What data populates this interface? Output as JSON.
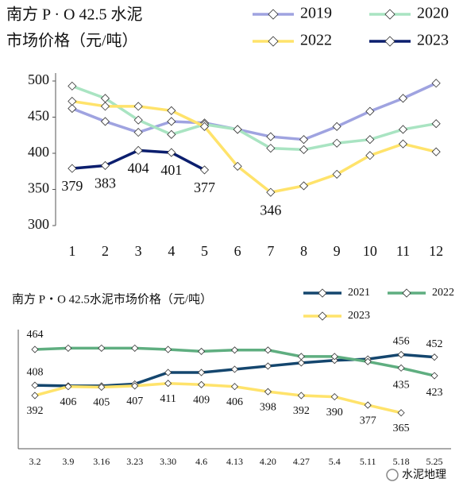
{
  "chart_data": [
    {
      "type": "line",
      "title": [
        "南方 P · O 42.5 水泥",
        "市场价格（元/吨）"
      ],
      "categories": [
        "1",
        "2",
        "3",
        "4",
        "5",
        "6",
        "7",
        "8",
        "9",
        "10",
        "11",
        "12"
      ],
      "ylim": [
        300,
        500
      ],
      "yticks": [
        300,
        350,
        400,
        450,
        500
      ],
      "series": [
        {
          "name": "2019",
          "color": "#9fa3e0",
          "values": [
            462,
            444,
            429,
            444,
            442,
            433,
            423,
            419,
            437,
            458,
            476,
            497
          ]
        },
        {
          "name": "2020",
          "color": "#a9e4c2",
          "values": [
            493,
            476,
            446,
            426,
            440,
            433,
            407,
            405,
            414,
            419,
            433,
            441
          ]
        },
        {
          "name": "2022",
          "color": "#ffe36b",
          "values": [
            472,
            465,
            465,
            459,
            437,
            382,
            346,
            355,
            371,
            397,
            413,
            402
          ],
          "labeled": [
            6
          ],
          "label_color": "#e8822a"
        },
        {
          "name": "2023",
          "color": "#0b1e6e",
          "values": [
            379,
            383,
            404,
            401,
            377,
            null,
            null,
            null,
            null,
            null,
            null,
            null
          ],
          "labeled": [
            0,
            1,
            2,
            3,
            4
          ],
          "label_color": "#111111"
        }
      ]
    },
    {
      "type": "line",
      "title": "南方 P・O 42.5水泥市场价格（元/吨）",
      "categories": [
        "3.2",
        "3.9",
        "3.16",
        "3.23",
        "3.30",
        "4.6",
        "4.13",
        "4.20",
        "4.27",
        "5.4",
        "5.11",
        "5.18",
        "5.25"
      ],
      "ylim": [
        320,
        500
      ],
      "series": [
        {
          "name": "2021",
          "color": "#14466e",
          "values": [
            408,
            407,
            407,
            410,
            428,
            428,
            433,
            438,
            443,
            447,
            449,
            456,
            452
          ],
          "labeled": [
            0,
            11,
            12
          ],
          "label_color": "#111111"
        },
        {
          "name": "2022",
          "color": "#5fae80",
          "values": [
            464,
            466,
            466,
            466,
            464,
            461,
            463,
            463,
            453,
            453,
            445,
            435,
            423
          ],
          "labeled": [
            0,
            11,
            12
          ],
          "label_color": "#2e8b2e"
        },
        {
          "name": "2023",
          "color": "#ffe36b",
          "values": [
            392,
            406,
            405,
            407,
            411,
            409,
            406,
            398,
            392,
            390,
            377,
            365,
            null
          ],
          "labeled": [
            0,
            1,
            2,
            3,
            4,
            5,
            6,
            7,
            8,
            9,
            10,
            11
          ],
          "label_color": "#e8822a"
        }
      ]
    },
    {
      "watermark": "水泥地理"
    }
  ]
}
